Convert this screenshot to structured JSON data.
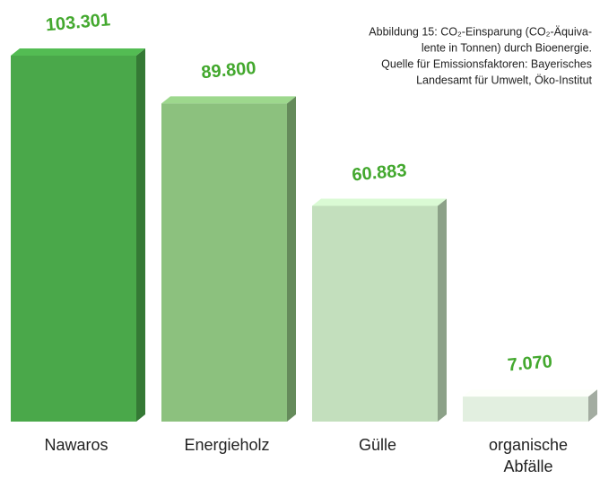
{
  "chart_data": {
    "type": "bar",
    "caption": [
      "Abbildung 15: CO₂-Einsparung (CO₂-Äquiva-",
      "lente in Tonnen) durch Bioenergie.",
      "Quelle für Emissionsfaktoren: Bayerisches",
      "Landesamt für Umwelt, Öko-Institut"
    ],
    "categories": [
      "Nawaros",
      "Energieholz",
      "Gülle",
      "organische Abfälle"
    ],
    "values": [
      103301,
      89800,
      60883,
      7070
    ],
    "value_labels": [
      "103.301",
      "89.800",
      "60.883",
      "7.070"
    ],
    "colors": [
      "#4aa84a",
      "#8cc17e",
      "#c3dfbd",
      "#e2efe0"
    ],
    "label_color": "#43a82e"
  }
}
